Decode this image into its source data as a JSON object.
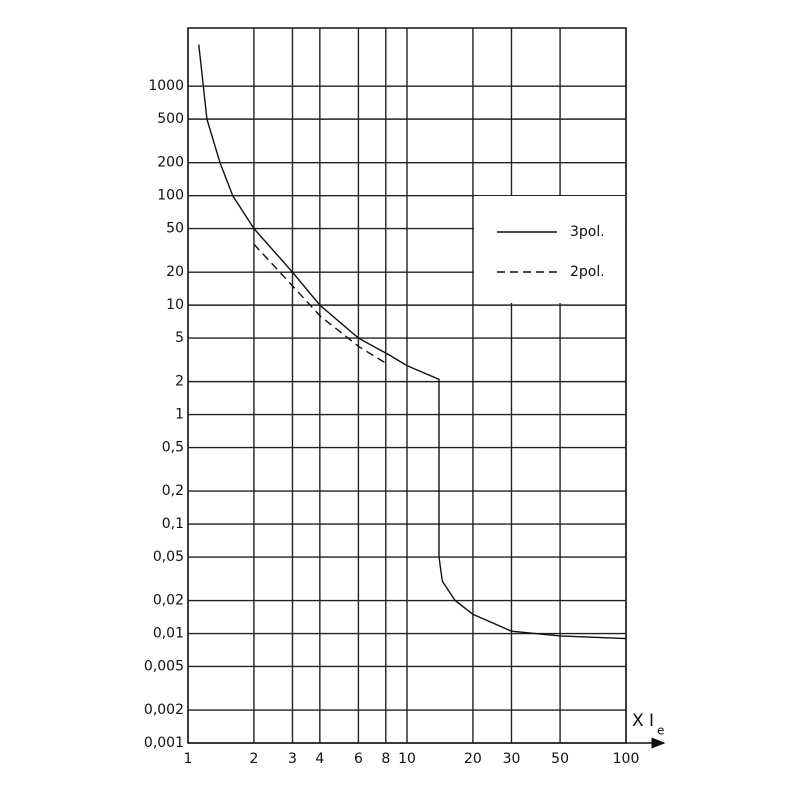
{
  "chart_data": {
    "type": "line",
    "x_label": "X I",
    "x_label_subscript": "e",
    "xscale": "log",
    "yscale": "log",
    "grid": true,
    "xlim": [
      1,
      100
    ],
    "ylim": [
      0.001,
      3400
    ],
    "xticks": [
      1,
      2,
      3,
      4,
      6,
      8,
      10,
      20,
      30,
      50,
      100
    ],
    "yticks": [
      {
        "value": 0.001,
        "label": "0,001"
      },
      {
        "value": 0.002,
        "label": "0,002"
      },
      {
        "value": 0.005,
        "label": "0,005"
      },
      {
        "value": 0.01,
        "label": "0,01"
      },
      {
        "value": 0.02,
        "label": "0,02"
      },
      {
        "value": 0.05,
        "label": "0,05"
      },
      {
        "value": 0.1,
        "label": "0,1"
      },
      {
        "value": 0.2,
        "label": "0,2"
      },
      {
        "value": 0.5,
        "label": "0,5"
      },
      1,
      2,
      5,
      10,
      20,
      50,
      100,
      200,
      500,
      1000
    ],
    "series": [
      {
        "name": "3pol.",
        "color": "#111111",
        "dash": "solid",
        "x": [
          1.12,
          1.22,
          1.4,
          1.6,
          2,
          3,
          4,
          6,
          8.3,
          10,
          14,
          14,
          14.5,
          16.6,
          20,
          30,
          50,
          100
        ],
        "values": [
          2400,
          500,
          200,
          100,
          50,
          20,
          10,
          5,
          3.5,
          2.8,
          2.1,
          0.05,
          0.03,
          0.02,
          0.015,
          0.0105,
          0.0095,
          0.009
        ]
      },
      {
        "name": "2pol.",
        "color": "#111111",
        "dash": "dashed",
        "x": [
          2,
          3,
          4,
          6,
          8
        ],
        "values": [
          36,
          15,
          8,
          4.2,
          2.95
        ]
      }
    ]
  }
}
